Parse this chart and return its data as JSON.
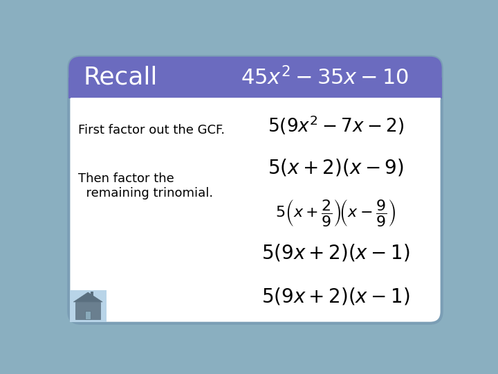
{
  "title": "Recall",
  "header_expr": "$45x^{2} - 35x - 10$",
  "left_text1": "First factor out the GCF.",
  "left_text2": "Then factor the\n  remaining trinomial.",
  "right_exprs": [
    "$5(9x^{2} - 7x - 2)$",
    "$5(x + 2)(x - 9)$",
    "$5\\left(x + \\dfrac{2}{9}\\right)\\!\\left(x - \\dfrac{9}{9}\\right)$",
    "$5(9x + 2)(x - 1)$",
    "$5(9x + 2)(x - 1)$"
  ],
  "header_bg": "#6B6BBF",
  "body_bg": "#FFFFFF",
  "outer_border": "#7B9EB5",
  "fig_bg": "#8AAFC0",
  "title_color": "#FFFFFF",
  "text_color": "#000000",
  "separator_color": "#FFFFFF",
  "home_bg": "#B8D4E8",
  "home_body": "#6A7F8F",
  "home_roof": "#5A6F7F",
  "home_door": "#8AAABB"
}
